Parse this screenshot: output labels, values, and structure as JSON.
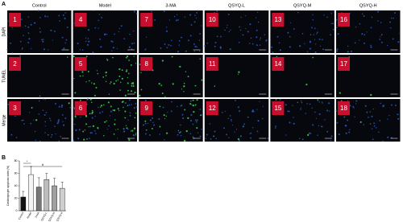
{
  "panel_a": {
    "label": "A",
    "columns": [
      "Control",
      "Model",
      "3-MA",
      "QSYQ-L",
      "QSYQ-M",
      "QSYQ-H"
    ],
    "rows": [
      "DAPI",
      "TUNEL",
      "Merge"
    ],
    "numbers": [
      [
        "1",
        "4",
        "7",
        "10",
        "13",
        "16"
      ],
      [
        "2",
        "5",
        "8",
        "11",
        "14",
        "17"
      ],
      [
        "3",
        "6",
        "9",
        "12",
        "15",
        "18"
      ]
    ]
  },
  "panel_b": {
    "label": "B"
  },
  "chart_data": {
    "type": "bar",
    "y_label": "Cardiomyocyte apoptosis index (%)",
    "categories": [
      "Control",
      "Model",
      "3-MA",
      "QSYQ-L",
      "QSYQ-M",
      "QSYQ-H"
    ],
    "values": [
      22,
      58,
      38,
      50,
      40,
      36
    ],
    "errors": [
      9,
      13,
      15,
      10,
      12,
      10
    ],
    "colors": [
      "#111111",
      "#f4f4f4",
      "#777777",
      "#bdbdbd",
      "#a0a0a0",
      "#cfcfcf"
    ],
    "ylim": [
      0,
      80
    ],
    "yticks": [
      0,
      20,
      40,
      60,
      80
    ],
    "annotations": [
      "*",
      "#"
    ]
  }
}
